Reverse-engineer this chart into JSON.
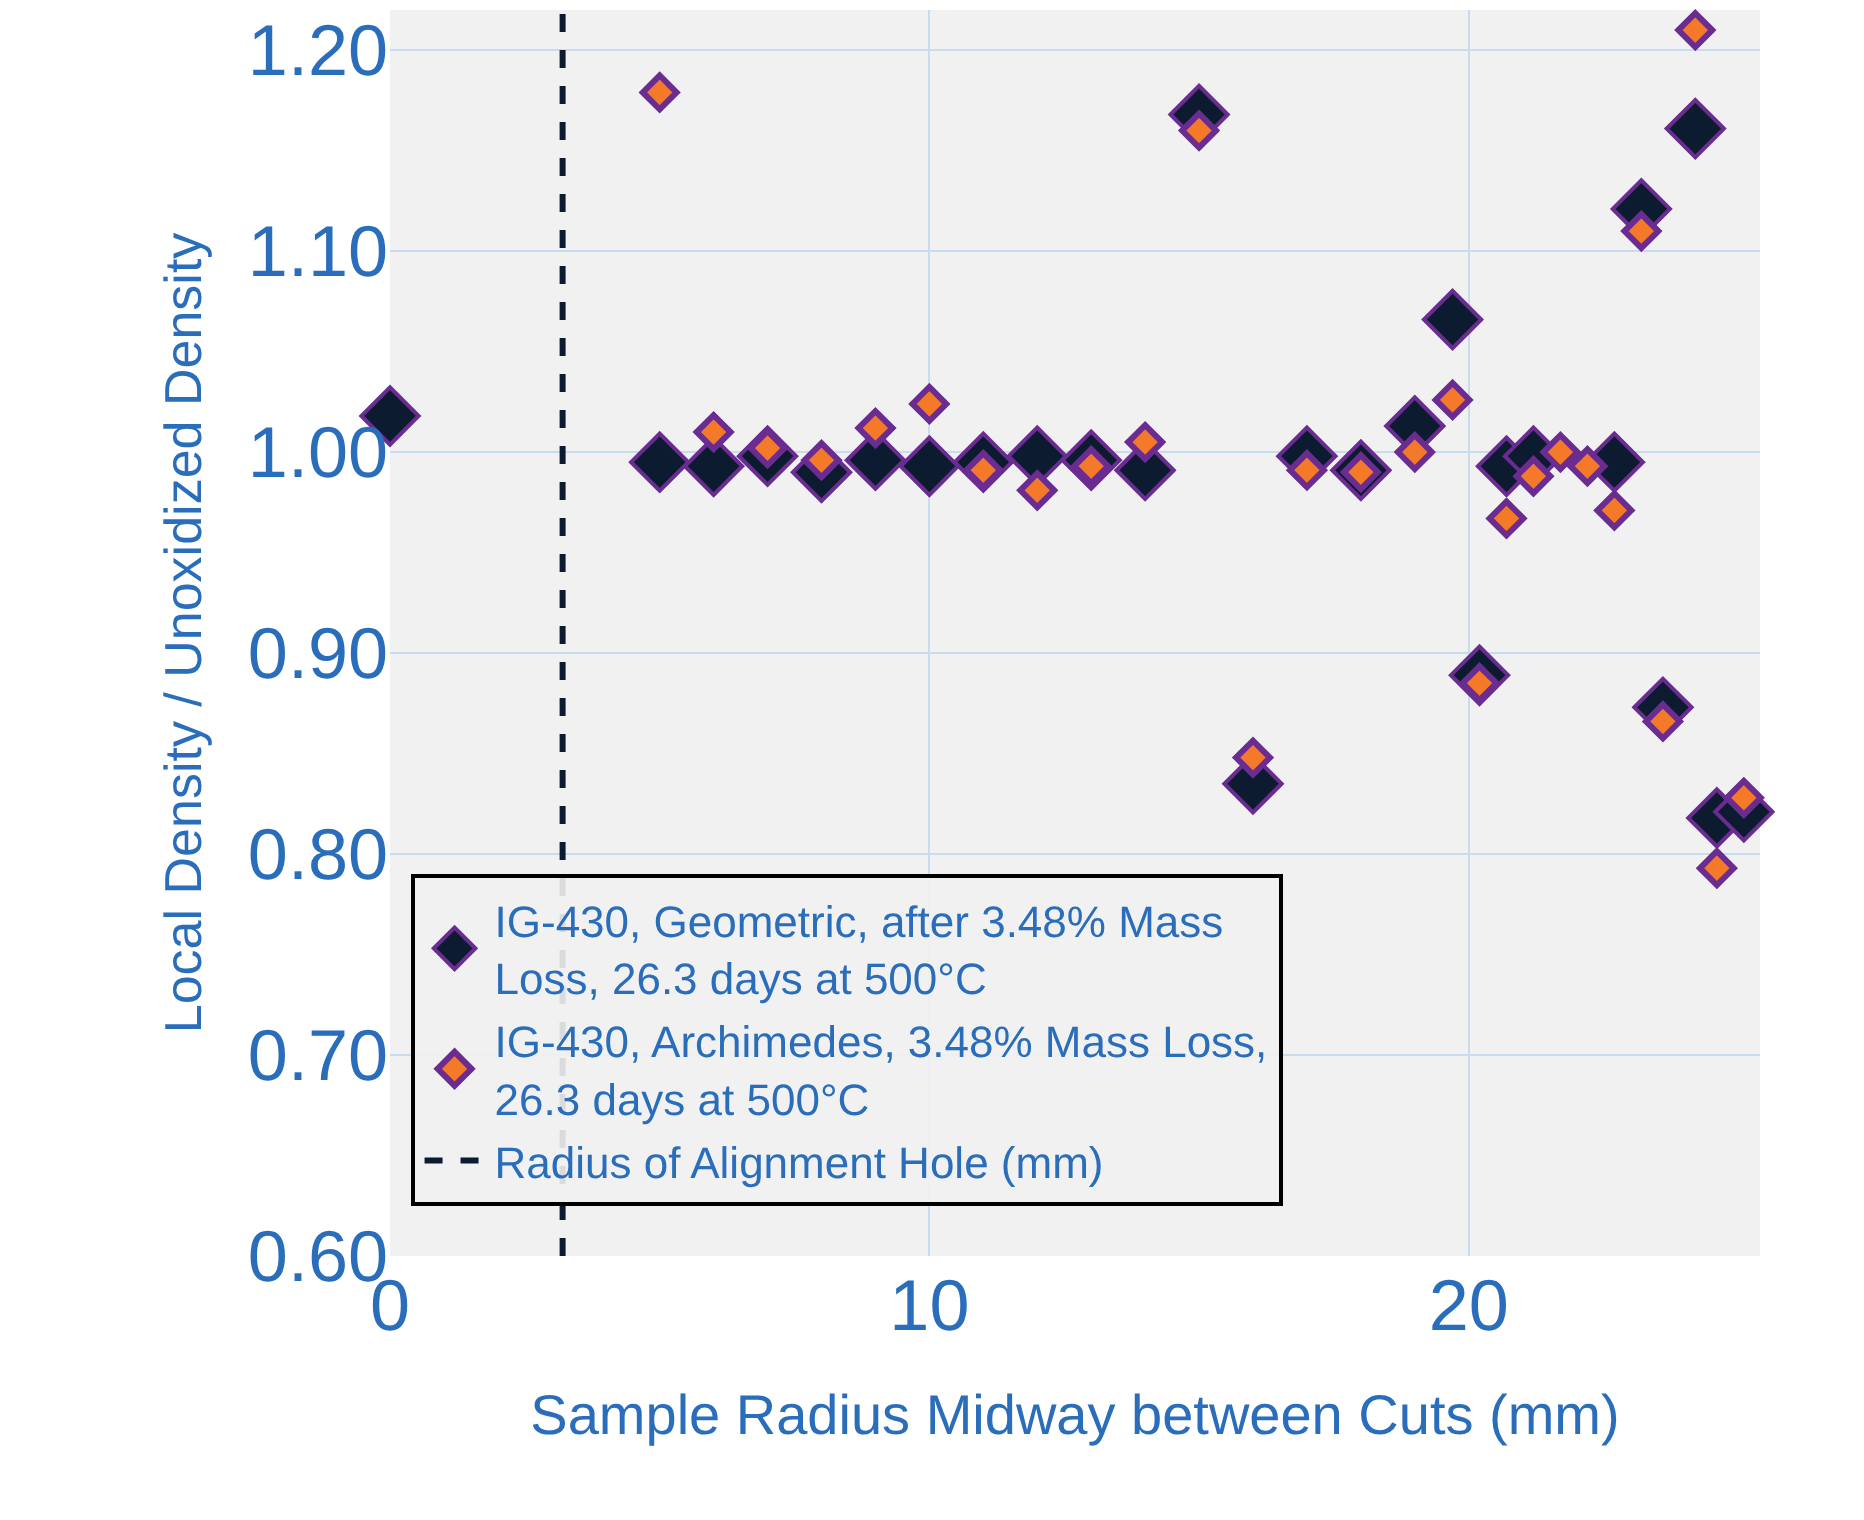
{
  "chart_data": {
    "type": "scatter",
    "xlabel": "Sample Radius Midway between Cuts (mm)",
    "ylabel": "Local Density / Unoxidized Density",
    "x": [
      0,
      5,
      6,
      7,
      8,
      9,
      10,
      11,
      12,
      13,
      14,
      15,
      16,
      17,
      18,
      19,
      19.7,
      20.2,
      20.7,
      21.2,
      21.7,
      22.2,
      22.7,
      23.2,
      23.6,
      24.2,
      24.6,
      25.1
    ],
    "series": [
      {
        "name": "IG-430, Geometric, after 3.48% Mass Loss, 26.3 days at 500°C",
        "color": "#0d1b30",
        "marker": "diamond",
        "values": [
          1.018,
          0.995,
          0.993,
          0.998,
          0.99,
          0.996,
          0.993,
          0.995,
          0.998,
          0.996,
          0.991,
          1.168,
          0.835,
          0.998,
          0.991,
          1.013,
          1.066,
          0.889,
          0.993,
          0.998,
          null,
          null,
          0.995,
          1.121,
          0.873,
          1.161,
          0.818,
          0.821
        ]
      },
      {
        "name": "IG-430, Archimedes, 3.48% Mass Loss, 26.3 days at 500°C",
        "color": "#f47a2a",
        "marker": "diamond",
        "values": [
          null,
          1.179,
          1.01,
          1.002,
          0.996,
          1.012,
          1.024,
          0.991,
          0.981,
          0.993,
          1.005,
          1.16,
          0.848,
          0.991,
          0.99,
          1.0,
          1.026,
          0.885,
          0.967,
          0.988,
          1.0,
          0.993,
          0.971,
          1.11,
          0.866,
          1.21,
          0.793,
          0.828
        ]
      }
    ],
    "ref_lines": [
      {
        "axis": "x",
        "value": 3.2,
        "label": "Radius of Alignment Hole (mm)",
        "color": "#0d1b30",
        "line_style": "dashed"
      }
    ],
    "xlim": [
      0,
      25.4
    ],
    "xticks": [
      0,
      10,
      20
    ],
    "ylim": [
      0.6,
      1.22
    ],
    "yticks": [
      {
        "value": 0.6,
        "label": "0.60"
      },
      {
        "value": 0.7,
        "label": "0.70"
      },
      {
        "value": 0.8,
        "label": "0.80"
      },
      {
        "value": 0.9,
        "label": "0.90"
      },
      {
        "value": 1.0,
        "label": "1.00"
      },
      {
        "value": 1.1,
        "label": "1.10"
      },
      {
        "value": 1.2,
        "label": "1.20"
      }
    ],
    "grid": true,
    "legend": "bottom left"
  }
}
